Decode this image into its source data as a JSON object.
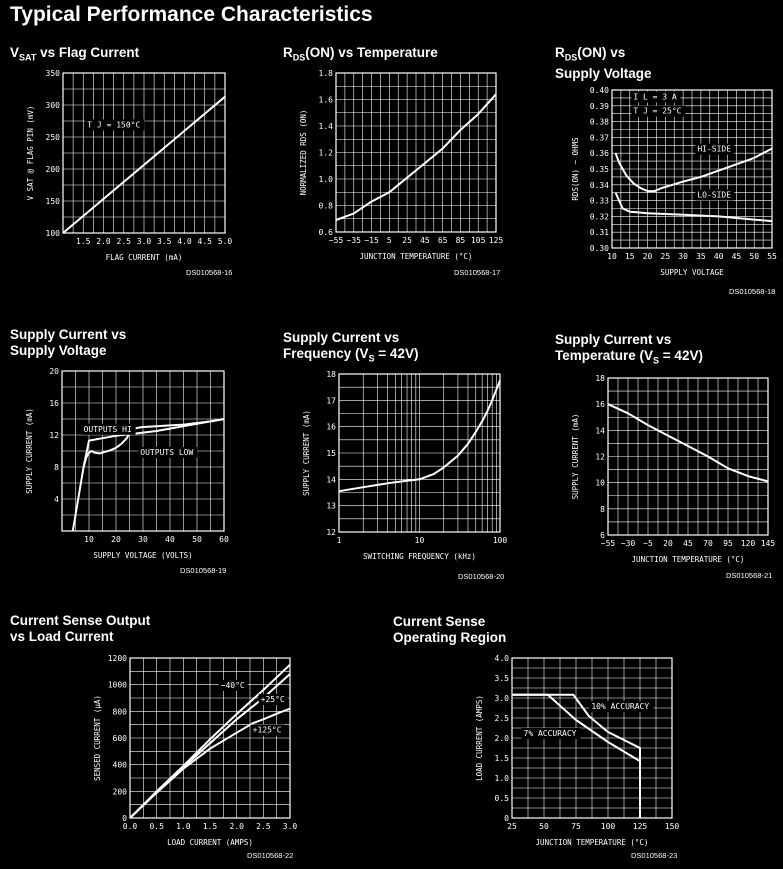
{
  "page": {
    "title": "Typical Performance Characteristics"
  },
  "chart_data": [
    {
      "id": "c1",
      "type": "line",
      "title_main": "V",
      "title_sub": "SAT",
      "title_rest": " vs Flag Current",
      "xlabel": "FLAG CURRENT (mA)",
      "ylabel": "V SAT @ FLAG PIN (mV)",
      "xlim": [
        1.0,
        5.0
      ],
      "ylim": [
        100,
        350
      ],
      "xticks": [
        1.5,
        2.0,
        2.5,
        3.0,
        3.5,
        4.0,
        4.5,
        5.0
      ],
      "xtick_labels": [
        "1.5",
        "2.0",
        "2.5",
        "3.0",
        "3.5",
        "4.0",
        "4.5",
        "5.0"
      ],
      "yticks": [
        100,
        150,
        200,
        250,
        300,
        350
      ],
      "ytick_labels": [
        "100",
        "150",
        "200",
        "250",
        "300",
        "350"
      ],
      "grid": true,
      "doc_id": "DS010568-16",
      "annotations": [
        {
          "text": "T J = 150°C",
          "x": 1.6,
          "y": 265
        }
      ],
      "series": [
        {
          "x": [
            1.0,
            5.0
          ],
          "y": [
            100,
            313
          ]
        }
      ]
    },
    {
      "id": "c2",
      "type": "line",
      "title_main": "R",
      "title_sub": "DS",
      "title_rest": "(ON) vs Temperature",
      "xlabel": "JUNCTION TEMPERATURE (°C)",
      "ylabel": "NORMALIZED RDS (ON)",
      "xlim": [
        -55,
        125
      ],
      "ylim": [
        0.6,
        1.8
      ],
      "xticks": [
        -55,
        -35,
        -15,
        5,
        25,
        45,
        65,
        85,
        105,
        125
      ],
      "xtick_labels": [
        "−55",
        "−35",
        "−15",
        "5",
        "25",
        "45",
        "65",
        "85",
        "105",
        "125"
      ],
      "yticks": [
        0.6,
        0.8,
        1.0,
        1.2,
        1.4,
        1.6,
        1.8
      ],
      "ytick_labels": [
        "0.6",
        "0.8",
        "1.0",
        "1.2",
        "1.4",
        "1.6",
        "1.8"
      ],
      "grid": true,
      "doc_id": "DS010568-17",
      "annotations": [],
      "series": [
        {
          "x": [
            -55,
            -35,
            -15,
            5,
            25,
            45,
            65,
            85,
            105,
            125
          ],
          "y": [
            0.69,
            0.74,
            0.83,
            0.9,
            1.01,
            1.12,
            1.23,
            1.37,
            1.49,
            1.64
          ]
        }
      ]
    },
    {
      "id": "c3",
      "type": "line",
      "title_main": "R",
      "title_sub": "DS",
      "title_rest": "(ON) vs",
      "title_line2": "Supply Voltage",
      "xlabel": "SUPPLY VOLTAGE",
      "ylabel": "RDS(ON) − OHMS",
      "xlim": [
        10,
        55
      ],
      "ylim": [
        0.3,
        0.4
      ],
      "xticks": [
        10,
        15,
        20,
        25,
        30,
        35,
        40,
        45,
        50,
        55
      ],
      "xtick_labels": [
        "10",
        "15",
        "20",
        "25",
        "30",
        "35",
        "40",
        "45",
        "50",
        "55"
      ],
      "yticks": [
        0.3,
        0.31,
        0.32,
        0.33,
        0.34,
        0.35,
        0.36,
        0.37,
        0.38,
        0.39,
        0.4
      ],
      "ytick_labels": [
        "0.30",
        "0.31",
        "0.32",
        "0.33",
        "0.34",
        "0.35",
        "0.36",
        "0.37",
        "0.38",
        "0.39",
        "0.40"
      ],
      "grid": true,
      "doc_id": "DS010568-18",
      "annotations": [
        {
          "text": "I L = 3 A",
          "x": 16,
          "y": 0.394
        },
        {
          "text": "T J = 25°C",
          "x": 16,
          "y": 0.385
        },
        {
          "text": "HI-SIDE",
          "x": 34,
          "y": 0.361
        },
        {
          "text": "LO-SIDE",
          "x": 34,
          "y": 0.332
        }
      ],
      "series": [
        {
          "name": "HI-SIDE",
          "x": [
            11,
            12,
            14,
            16,
            18,
            20,
            22,
            24,
            27,
            30,
            35,
            40,
            45,
            50,
            55
          ],
          "y": [
            0.36,
            0.354,
            0.346,
            0.341,
            0.338,
            0.336,
            0.336,
            0.338,
            0.34,
            0.342,
            0.345,
            0.349,
            0.353,
            0.357,
            0.363
          ]
        },
        {
          "name": "LO-SIDE",
          "x": [
            11,
            12,
            13,
            15,
            20,
            25,
            30,
            35,
            40,
            45,
            50,
            55
          ],
          "y": [
            0.335,
            0.33,
            0.325,
            0.323,
            0.322,
            0.3215,
            0.321,
            0.3205,
            0.32,
            0.319,
            0.318,
            0.317
          ]
        }
      ]
    },
    {
      "id": "c4",
      "type": "line",
      "title_line1": "Supply Current vs",
      "title_line2": "Supply Voltage",
      "xlabel": "SUPPLY VOLTAGE (VOLTS)",
      "ylabel": "SUPPLY CURRENT (mA)",
      "xlim": [
        0,
        60
      ],
      "ylim": [
        0,
        20
      ],
      "xticks": [
        10,
        20,
        30,
        40,
        50,
        60
      ],
      "xtick_labels": [
        "10",
        "20",
        "30",
        "40",
        "50",
        "60"
      ],
      "yticks": [
        4,
        8,
        12,
        16,
        20
      ],
      "ytick_labels": [
        "4",
        "8",
        "12",
        "16",
        "20"
      ],
      "grid": true,
      "doc_id": "DS010568-19",
      "annotations": [
        {
          "text": "OUTPUTS HI",
          "x": 8,
          "y": 12.4
        },
        {
          "text": "OUTPUTS LOW",
          "x": 29,
          "y": 9.5
        }
      ],
      "series": [
        {
          "name": "OUTPUTS HI",
          "x": [
            4,
            6,
            8,
            10,
            15,
            20,
            25,
            30,
            35,
            40,
            45,
            50,
            55,
            60
          ],
          "y": [
            0,
            4,
            8,
            11.3,
            11.6,
            11.9,
            12.1,
            12.3,
            12.5,
            12.8,
            13.1,
            13.4,
            13.7,
            14.0
          ]
        },
        {
          "name": "OUTPUTS LOW",
          "x": [
            8,
            9,
            10,
            11,
            12,
            14,
            16,
            18,
            20,
            22,
            24,
            25,
            26,
            28,
            30,
            35,
            40,
            45,
            50,
            55,
            60
          ],
          "y": [
            8,
            9.2,
            9.8,
            10.0,
            9.8,
            9.7,
            9.9,
            10.1,
            10.4,
            10.9,
            11.6,
            12.3,
            12.7,
            12.9,
            13.0,
            13.1,
            13.2,
            13.3,
            13.5,
            13.7,
            14.0
          ]
        }
      ]
    },
    {
      "id": "c5",
      "type": "line",
      "title_line1": "Supply Current vs",
      "title_line2_pre": "Frequency (V",
      "title_line2_sub": "S",
      "title_line2_post": " = 42V)",
      "xlabel": "SWITCHING FREQUENCY (kHz)",
      "ylabel": "SUPPLY CURRENT (mA)",
      "xscale": "log",
      "xlim": [
        1,
        100
      ],
      "ylim": [
        12,
        18
      ],
      "xticks": [
        1,
        10,
        100
      ],
      "xtick_labels": [
        "1",
        "10",
        "100"
      ],
      "yticks": [
        12,
        13,
        14,
        15,
        16,
        17,
        18
      ],
      "ytick_labels": [
        "12",
        "13",
        "14",
        "15",
        "16",
        "17",
        "18"
      ],
      "grid": true,
      "doc_id": "DS010568-20",
      "annotations": [],
      "series": [
        {
          "x": [
            1,
            2,
            4,
            7,
            10,
            15,
            20,
            30,
            40,
            50,
            60,
            70,
            80,
            90,
            100
          ],
          "y": [
            13.55,
            13.7,
            13.85,
            13.95,
            14.0,
            14.2,
            14.45,
            14.9,
            15.35,
            15.8,
            16.2,
            16.6,
            17.0,
            17.4,
            17.75
          ]
        }
      ]
    },
    {
      "id": "c6",
      "type": "line",
      "title_line1": "Supply Current vs",
      "title_line2_pre": "Temperature (V",
      "title_line2_sub": "S",
      "title_line2_post": " = 42V)",
      "xlabel": "JUNCTION TEMPERATURE (°C)",
      "ylabel": "SUPPLY CURRENT (mA)",
      "xlim": [
        -55,
        145
      ],
      "ylim": [
        6,
        18
      ],
      "xticks": [
        -55,
        -30,
        -5,
        20,
        45,
        70,
        95,
        120,
        145
      ],
      "xtick_labels": [
        "−55",
        "−30",
        "−5",
        "20",
        "45",
        "70",
        "95",
        "120",
        "145"
      ],
      "yticks": [
        6,
        8,
        10,
        12,
        14,
        16,
        18
      ],
      "ytick_labels": [
        "6",
        "8",
        "10",
        "12",
        "14",
        "16",
        "18"
      ],
      "grid": true,
      "doc_id": "DS010568-21",
      "annotations": [],
      "series": [
        {
          "x": [
            -55,
            -30,
            -5,
            20,
            45,
            70,
            95,
            120,
            145
          ],
          "y": [
            16.0,
            15.3,
            14.4,
            13.6,
            12.8,
            12.0,
            11.1,
            10.5,
            10.1
          ]
        }
      ]
    },
    {
      "id": "c7",
      "type": "line",
      "title_line1": "Current Sense Output",
      "title_line2": "vs Load Current",
      "xlabel": "LOAD CURRENT (AMPS)",
      "ylabel": "SENSED CURRENT (µA)",
      "xlim": [
        0,
        3.0
      ],
      "ylim": [
        0,
        1200
      ],
      "xticks": [
        0,
        0.5,
        1.0,
        1.5,
        2.0,
        2.5,
        3.0
      ],
      "xtick_labels": [
        "0.0",
        "0.5",
        "1.0",
        "1.5",
        "2.0",
        "2.5",
        "3.0"
      ],
      "yticks": [
        0,
        200,
        400,
        600,
        800,
        1000,
        1200
      ],
      "ytick_labels": [
        "0",
        "200",
        "400",
        "600",
        "800",
        "1000",
        "1200"
      ],
      "grid": true,
      "doc_id": "DS010568-22",
      "annotations": [
        {
          "text": "−40°C",
          "x": 1.7,
          "y": 975
        },
        {
          "text": "+25°C",
          "x": 2.45,
          "y": 870
        },
        {
          "text": "+125°C",
          "x": 2.3,
          "y": 640
        }
      ],
      "series": [
        {
          "name": "−40°C",
          "x": [
            0,
            0.5,
            1.0,
            1.5,
            2.0,
            2.5,
            3.0
          ],
          "y": [
            0,
            200,
            390,
            590,
            780,
            960,
            1150
          ]
        },
        {
          "name": "+25°C",
          "x": [
            0,
            0.5,
            1.0,
            1.5,
            2.0,
            2.5,
            3.0
          ],
          "y": [
            0,
            195,
            380,
            560,
            740,
            900,
            1080
          ]
        },
        {
          "name": "+125°C",
          "x": [
            0,
            0.5,
            1.0,
            1.5,
            2.0,
            2.3,
            2.5,
            2.8,
            3.0
          ],
          "y": [
            0,
            190,
            370,
            520,
            640,
            710,
            740,
            790,
            820
          ]
        }
      ]
    },
    {
      "id": "c8",
      "type": "line",
      "title_line1": "Current Sense",
      "title_line2": "Operating Region",
      "xlabel": "JUNCTION TEMPERATURE (°C)",
      "ylabel": "LOAD CURRENT (AMPS)",
      "xlim": [
        25,
        150
      ],
      "ylim": [
        0,
        4.0
      ],
      "xticks": [
        25,
        50,
        75,
        100,
        125,
        150
      ],
      "xtick_labels": [
        "25",
        "50",
        "75",
        "100",
        "125",
        "150"
      ],
      "yticks": [
        0,
        0.5,
        1.0,
        1.5,
        2.0,
        2.5,
        3.0,
        3.5,
        4.0
      ],
      "ytick_labels": [
        "0",
        "0.5",
        "1.0",
        "1.5",
        "2.0",
        "2.5",
        "3.0",
        "3.5",
        "4.0"
      ],
      "grid": true,
      "doc_id": "DS010568-23",
      "annotations": [
        {
          "text": "10% ACCURACY",
          "x": 87,
          "y": 2.72
        },
        {
          "text": "7% ACCURACY",
          "x": 34,
          "y": 2.05
        }
      ],
      "series": [
        {
          "name": "10% ACCURACY",
          "x": [
            25,
            73,
            85,
            100,
            125,
            125
          ],
          "y": [
            3.08,
            3.08,
            2.55,
            2.15,
            1.75,
            0
          ]
        },
        {
          "name": "7% ACCURACY",
          "x": [
            25,
            53,
            75,
            100,
            125
          ],
          "y": [
            3.08,
            3.08,
            2.45,
            1.9,
            1.42
          ]
        }
      ]
    }
  ]
}
